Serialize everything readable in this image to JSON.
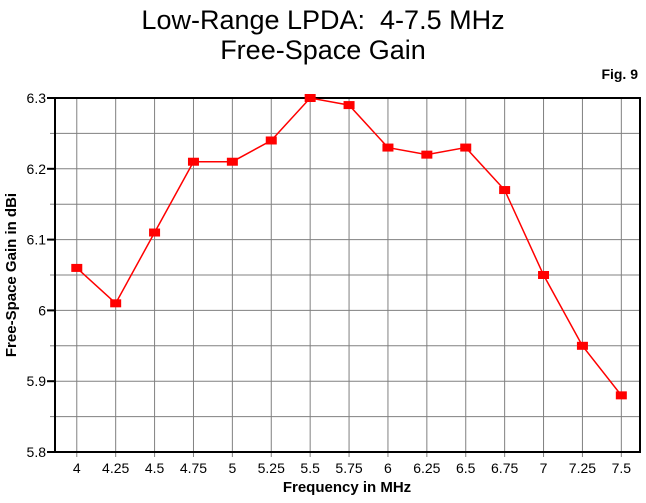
{
  "figure": {
    "annotation": "Fig. 9"
  },
  "chart_data": {
    "type": "line",
    "title_lines": [
      "Low-Range LPDA:  4-7.5 MHz",
      "Free-Space Gain"
    ],
    "xlabel": "Frequency in MHz",
    "ylabel": "Free-Space Gain in dBi",
    "x": [
      4,
      4.25,
      4.5,
      4.75,
      5,
      5.25,
      5.5,
      5.75,
      6,
      6.25,
      6.5,
      6.75,
      7,
      7.25,
      7.5
    ],
    "series": [
      {
        "name": "Free-Space Gain",
        "color": "#ff0000",
        "marker": "square",
        "values": [
          6.06,
          6.01,
          6.11,
          6.21,
          6.21,
          6.24,
          6.3,
          6.29,
          6.23,
          6.22,
          6.23,
          6.17,
          6.05,
          5.95,
          5.88
        ]
      }
    ],
    "xlim": [
      3.86,
      7.62
    ],
    "ylim": [
      5.8,
      6.3
    ],
    "x_tick_labels": [
      "4",
      "4.25",
      "4.5",
      "4.75",
      "5",
      "5.25",
      "5.5",
      "5.75",
      "6",
      "6.25",
      "6.5",
      "6.75",
      "7",
      "7.25",
      "7.5"
    ],
    "y_tick_labels": [
      "5.8",
      "5.9",
      "6",
      "6.1",
      "6.2",
      "6.3"
    ],
    "y_minor_step": 0.05,
    "grid": true,
    "legend_position": "none",
    "colors": {
      "line": "#ff0000",
      "grid": "#808080",
      "axis": "#000000",
      "background": "#ffffff"
    }
  }
}
